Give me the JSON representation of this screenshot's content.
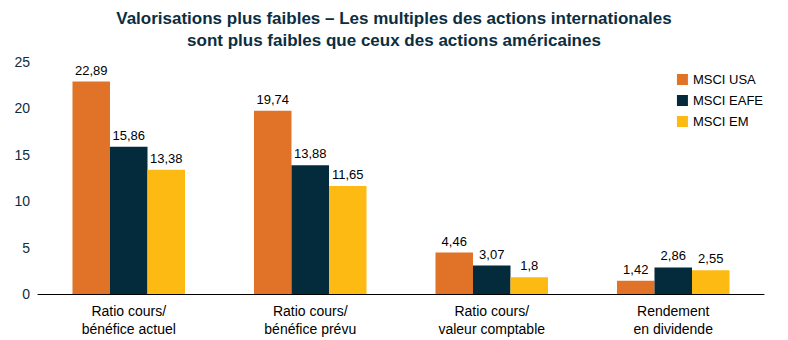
{
  "chart_data": {
    "type": "bar",
    "title": "Valorisations plus faibles – Les multiples des actions internationales\nsont plus faibles que ceux des actions américaines",
    "categories": [
      "Ratio cours/\nbénéfice actuel",
      "Ratio cours/\nbénéfice prévu",
      "Ratio cours/\nvaleur comptable",
      "Rendement\nen dividende"
    ],
    "series": [
      {
        "name": "MSCI USA",
        "color": "#E07328",
        "values": [
          22.89,
          19.74,
          4.46,
          1.42
        ],
        "value_labels": [
          "22,89",
          "19,74",
          "4,46",
          "1,42"
        ]
      },
      {
        "name": "MSCI EAFE",
        "color": "#042B3C",
        "values": [
          15.86,
          13.88,
          3.07,
          2.86
        ],
        "value_labels": [
          "15,86",
          "13,88",
          "3,07",
          "2,86"
        ]
      },
      {
        "name": "MSCI EM",
        "color": "#FDBA12",
        "values": [
          13.38,
          11.65,
          1.8,
          2.55
        ],
        "value_labels": [
          "13,38",
          "11,65",
          "1,8",
          "2,55"
        ]
      }
    ],
    "ylim": [
      0,
      25
    ],
    "yticks": [
      0,
      5,
      10,
      15,
      20,
      25
    ],
    "grid": false,
    "legend": "top-right",
    "data_labels": true
  }
}
